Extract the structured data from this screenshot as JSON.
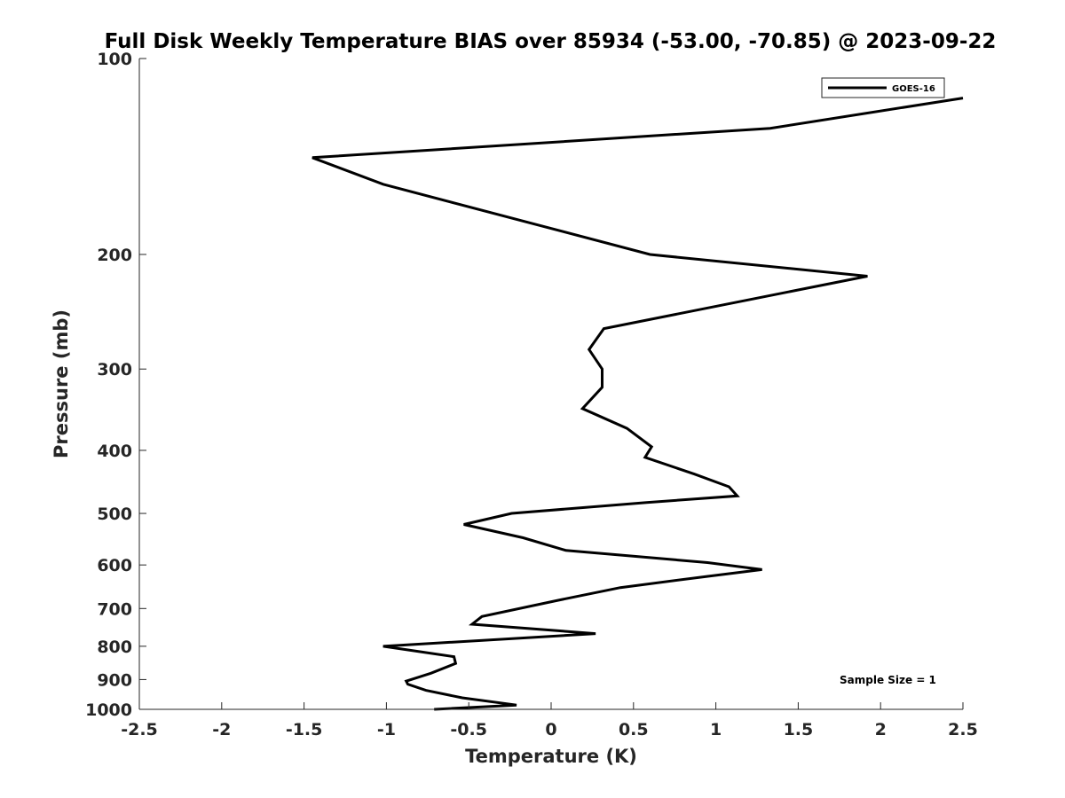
{
  "chart_data": {
    "type": "line",
    "title": "Full Disk Weekly Temperature BIAS over 85934 (-53.00, -70.85) @ 2023-09-22",
    "xlabel": "Temperature (K)",
    "ylabel": "Pressure (mb)",
    "xlim": [
      -2.5,
      2.5
    ],
    "ylim": [
      1000,
      100
    ],
    "yscale": "log",
    "xticks": [
      -2.5,
      -2,
      -1.5,
      -1,
      -0.5,
      0,
      0.5,
      1,
      1.5,
      2,
      2.5
    ],
    "xtick_labels": [
      "-2.5",
      "-2",
      "-1.5",
      "-1",
      "-0.5",
      "0",
      "0.5",
      "1",
      "1.5",
      "2",
      "2.5"
    ],
    "yticks": [
      100,
      200,
      300,
      400,
      500,
      600,
      700,
      800,
      900,
      1000
    ],
    "ytick_labels": [
      "100",
      "200",
      "300",
      "400",
      "500",
      "600",
      "700",
      "800",
      "900",
      "1000"
    ],
    "grid": false,
    "legend_position": "top-right",
    "annotation": "Sample Size = 1",
    "series": [
      {
        "name": "GOES-16",
        "color": "#000000",
        "x": [
          2.5,
          1.33,
          -1.45,
          -1.02,
          0.6,
          1.92,
          0.32,
          0.23,
          0.31,
          0.31,
          0.19,
          0.46,
          0.61,
          0.57,
          0.87,
          1.08,
          1.13,
          0.58,
          -0.24,
          -0.53,
          -0.17,
          0.09,
          0.95,
          1.28,
          0.94,
          0.42,
          0.04,
          -0.42,
          -0.48,
          0.27,
          -1.02,
          -0.59,
          -0.58,
          -0.73,
          -0.88,
          -0.87,
          -0.76,
          -0.54,
          -0.21,
          -0.71
        ],
        "y": [
          115,
          128,
          142,
          156,
          200,
          216,
          260,
          280,
          300,
          320,
          345,
          370,
          395,
          410,
          435,
          455,
          470,
          481,
          500,
          520,
          545,
          570,
          595,
          610,
          625,
          650,
          680,
          720,
          740,
          765,
          800,
          830,
          850,
          880,
          905,
          915,
          935,
          960,
          985,
          1000
        ]
      }
    ]
  }
}
